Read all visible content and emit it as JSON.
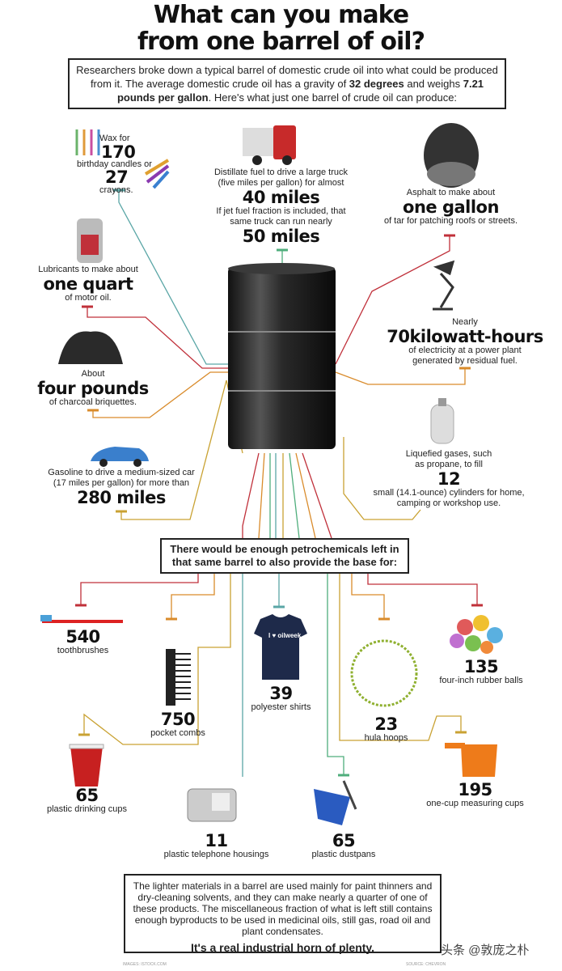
{
  "title": {
    "line1": "What can you make",
    "line2": "from one barrel of oil?"
  },
  "intro": {
    "text_a": "Researchers broke down a typical barrel of domestic crude oil into what could be produced from it. The average domestic crude oil has a gravity of ",
    "bold_a": "32 degrees",
    "text_b": " and weighs ",
    "bold_b": "7.21 pounds per gallon",
    "text_c": ". Here's what just one barrel of crude oil can produce:"
  },
  "products": {
    "wax": {
      "pre": "Wax for",
      "n1": "170",
      "mid": "birthday candles or",
      "n2": "27",
      "post": "crayons."
    },
    "truck": {
      "pre": "Distillate fuel to drive a large truck (five miles per gallon) for almost",
      "big1": "40 miles",
      "mid": "If jet fuel fraction is included, that same truck can run nearly",
      "big2": "50 miles"
    },
    "asphalt": {
      "pre": "Asphalt to make about",
      "big": "one gallon",
      "post": "of tar for patching roofs or streets."
    },
    "lubricant": {
      "pre": "Lubricants to make about",
      "big": "one quart",
      "post": "of motor oil."
    },
    "electricity": {
      "pre": "Nearly",
      "big": "70kilowatt-hours",
      "post": "of electricity at a power plant generated by residual fuel."
    },
    "charcoal": {
      "pre": "About",
      "big": "four pounds",
      "post": "of charcoal briquettes."
    },
    "propane": {
      "pre": "Liquefied gases, such as propane, to fill",
      "big": "12",
      "post": "small (14.1-ounce) cylinders for home, camping or workshop use."
    },
    "gasoline": {
      "pre": "Gasoline to drive a medium-sized car (17 miles per gallon) for more than",
      "big": "280 miles"
    }
  },
  "petro_box": "There would be enough petrochemicals left in that same barrel to also provide the base for:",
  "petro": [
    {
      "n": "540",
      "label": "toothbrushes"
    },
    {
      "n": "750",
      "label": "pocket combs"
    },
    {
      "n": "39",
      "label": "polyester shirts",
      "shirt_text": "I ♥ oilweek"
    },
    {
      "n": "23",
      "label": "hula hoops"
    },
    {
      "n": "135",
      "label": "four-inch rubber balls"
    },
    {
      "n": "65",
      "label": "plastic drinking cups"
    },
    {
      "n": "11",
      "label": "plastic telephone housings"
    },
    {
      "n": "65",
      "label": "plastic dustpans"
    },
    {
      "n": "195",
      "label": "one-cup measuring cups"
    }
  ],
  "footer": {
    "text": "The lighter materials in a barrel are used mainly for paint thinners and dry-cleaning solvents, and they can make nearly a quarter of one of these products. The miscellaneous fraction of what is left still contains enough byproducts to be used in medicinal oils, still gas, road oil and plant condensates.",
    "tagline": "It's a real industrial horn of plenty.",
    "credit_images": "IMAGES: ISTOCK.COM",
    "credit_source": "SOURCE: CHEVRON"
  },
  "watermark": "头条 @敦庞之朴",
  "colors": {
    "teal": "#5aa6a6",
    "red": "#c0303a",
    "orange": "#d98b2b",
    "gold": "#c9a233",
    "green": "#4fae7c"
  }
}
